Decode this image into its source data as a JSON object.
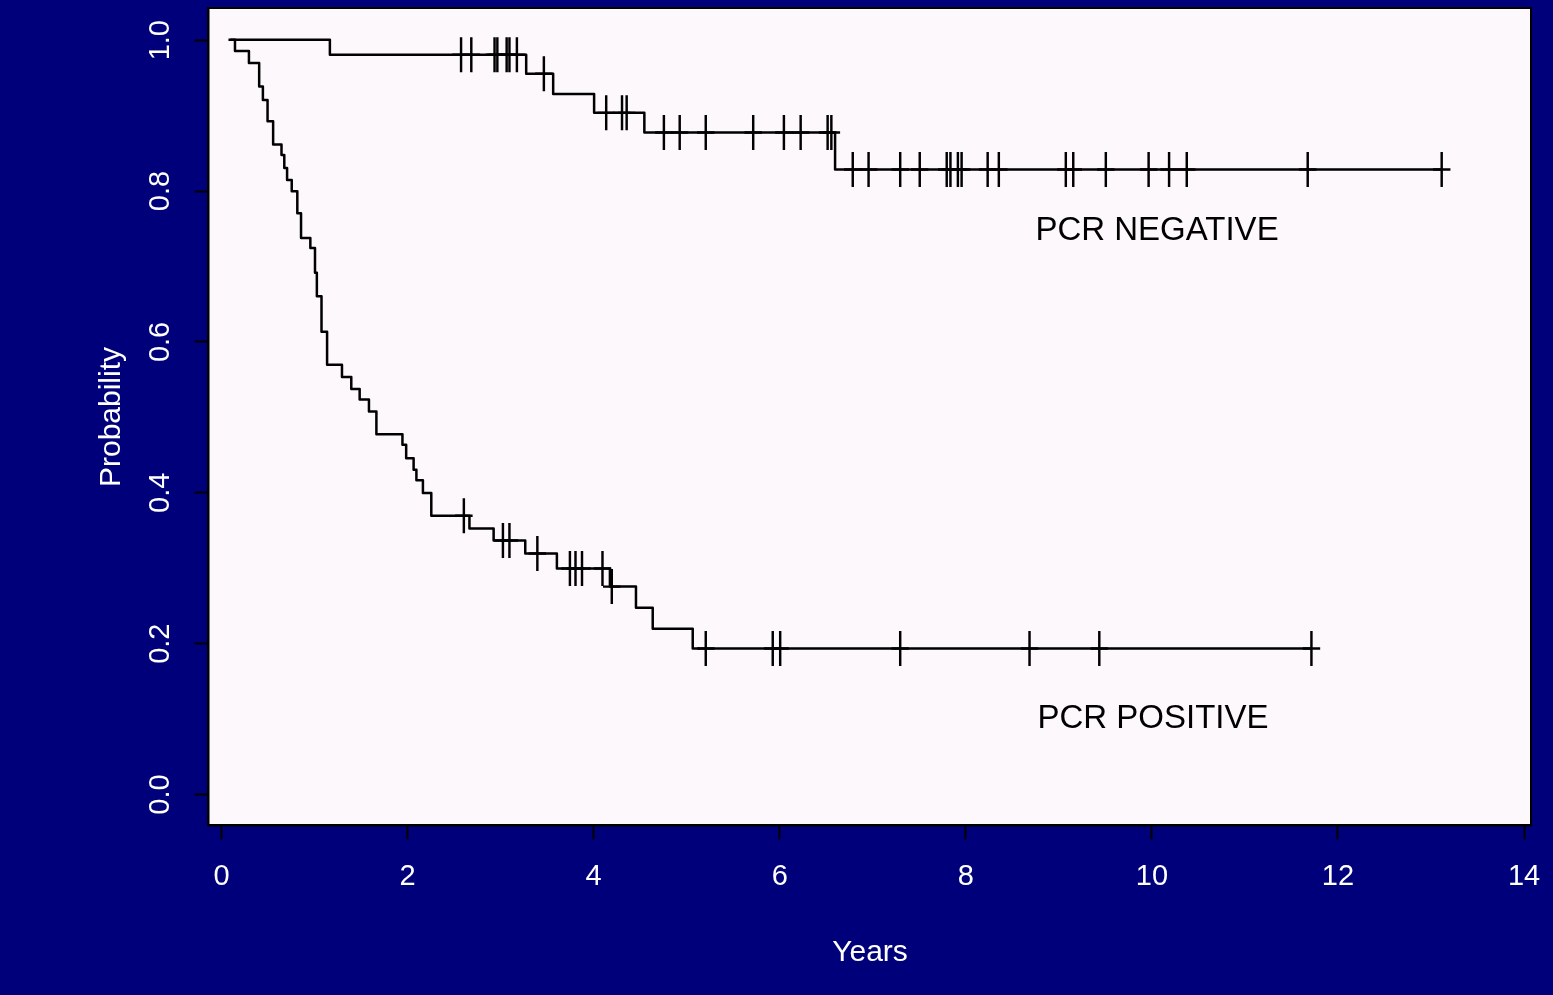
{
  "chart_data": {
    "type": "step",
    "xlabel": "Years",
    "ylabel": "Probability",
    "xlim": [
      -0.14,
      14.08
    ],
    "ylim": [
      -0.041,
      1.042
    ],
    "xticks": [
      0,
      2,
      4,
      6,
      8,
      10,
      12,
      14
    ],
    "yticks": [
      {
        "value": 0,
        "label": "0.0"
      },
      0.2,
      0.4,
      0.6,
      0.8,
      {
        "value": 1,
        "label": "1.0"
      }
    ],
    "grid": false,
    "series": [
      {
        "color": "#000000",
        "x": [
          0.1,
          1.17,
          3.28,
          3.57,
          4.01,
          4.55,
          6.6,
          13.12
        ],
        "values": [
          1.0,
          0.98,
          0.955,
          0.928,
          0.903,
          0.877,
          0.828,
          0.828
        ]
      },
      {
        "type": "scatter",
        "marker": "cross",
        "color": "#000000",
        "x": [
          2.58,
          2.69,
          2.94,
          2.97,
          3.07,
          3.1,
          3.18,
          3.47,
          4.14,
          4.31,
          4.36,
          4.76,
          4.93,
          5.21,
          5.72,
          6.05,
          6.23,
          6.52,
          6.56,
          6.79,
          6.96,
          7.3,
          7.51,
          7.8,
          7.84,
          7.92,
          7.96,
          8.24,
          8.36,
          9.08,
          9.16,
          9.51,
          9.97,
          10.19,
          10.38,
          11.68,
          13.12
        ],
        "values": [
          0.98,
          0.98,
          0.98,
          0.98,
          0.98,
          0.98,
          0.98,
          0.955,
          0.903,
          0.903,
          0.903,
          0.877,
          0.877,
          0.877,
          0.877,
          0.877,
          0.877,
          0.877,
          0.877,
          0.828,
          0.828,
          0.828,
          0.828,
          0.828,
          0.828,
          0.828,
          0.828,
          0.828,
          0.828,
          0.828,
          0.828,
          0.828,
          0.828,
          0.828,
          0.828,
          0.828,
          0.828
        ]
      },
      {
        "color": "#000000",
        "x": [
          0.08,
          0.15,
          0.3,
          0.41,
          0.45,
          0.5,
          0.56,
          0.65,
          0.68,
          0.71,
          0.76,
          0.82,
          0.86,
          0.96,
          1.01,
          1.03,
          1.08,
          1.14,
          1.3,
          1.4,
          1.49,
          1.59,
          1.67,
          1.95,
          1.99,
          2.07,
          2.1,
          2.17,
          2.26,
          2.67,
          2.93,
          3.27,
          3.61,
          4.18,
          4.46,
          4.64,
          5.07,
          11.72
        ],
        "values": [
          1.0,
          0.985,
          0.969,
          0.938,
          0.92,
          0.892,
          0.861,
          0.847,
          0.83,
          0.814,
          0.799,
          0.77,
          0.737,
          0.724,
          0.691,
          0.66,
          0.613,
          0.569,
          0.553,
          0.537,
          0.523,
          0.507,
          0.477,
          0.463,
          0.445,
          0.43,
          0.416,
          0.399,
          0.369,
          0.352,
          0.336,
          0.319,
          0.299,
          0.275,
          0.247,
          0.219,
          0.193,
          0.193
        ]
      },
      {
        "type": "scatter",
        "marker": "cross",
        "color": "#000000",
        "x": [
          2.61,
          3.03,
          3.1,
          3.4,
          3.75,
          3.81,
          3.88,
          4.1,
          4.2,
          5.21,
          5.93,
          6.01,
          7.3,
          8.69,
          9.44,
          11.72
        ],
        "values": [
          0.369,
          0.336,
          0.336,
          0.319,
          0.299,
          0.299,
          0.299,
          0.299,
          0.275,
          0.193,
          0.193,
          0.193,
          0.193,
          0.193,
          0.193,
          0.193
        ]
      }
    ],
    "annotations": [
      "PCR NEGATIVE",
      "PCR POSITIVE"
    ]
  }
}
